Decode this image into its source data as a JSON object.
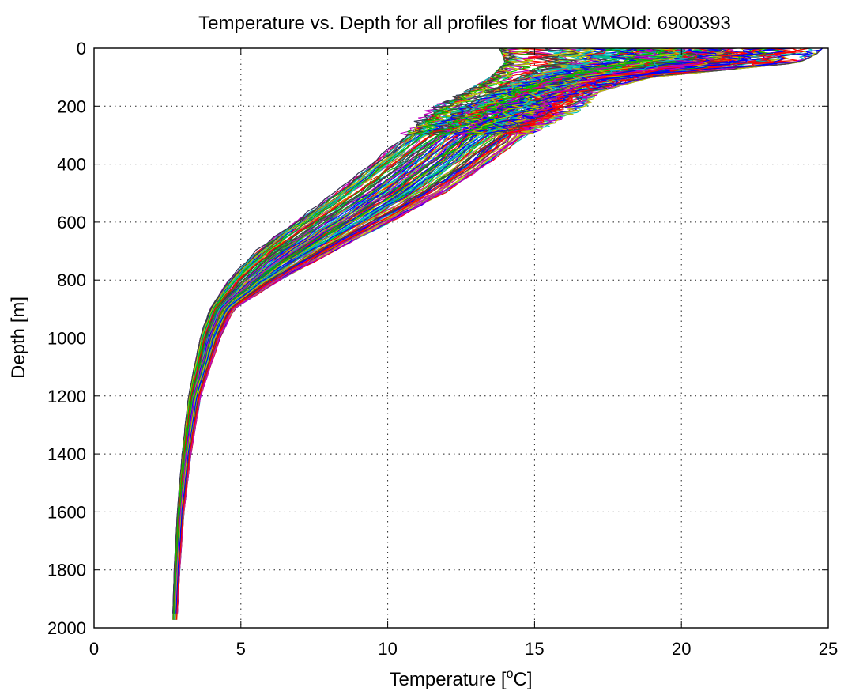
{
  "chart_data": {
    "type": "line",
    "title": "Temperature vs. Depth for all profiles for float WMOId: 6900393",
    "xlabel": "Temperature [",
    "xlabel_sup": "o",
    "xlabel_suffix": "C]",
    "ylabel": "Depth [m]",
    "xlim": [
      0,
      25
    ],
    "ylim": [
      0,
      2000
    ],
    "y_reversed": true,
    "grid": true,
    "x_ticks": [
      0,
      5,
      10,
      15,
      20,
      25
    ],
    "y_ticks": [
      0,
      200,
      400,
      600,
      800,
      1000,
      1200,
      1400,
      1600,
      1800,
      2000
    ],
    "profile_count": 150,
    "palette": [
      "#ff0000",
      "#00bf00",
      "#0000ff",
      "#00bfbf",
      "#bf00bf",
      "#bfbf00",
      "#404040"
    ],
    "representative_profile": {
      "depth": [
        0,
        20,
        50,
        80,
        100,
        150,
        200,
        300,
        400,
        500,
        600,
        700,
        750,
        800,
        900,
        1000,
        1100,
        1200,
        1400,
        1600,
        1800,
        1975
      ],
      "temperature": [
        21.0,
        20.0,
        18.5,
        16.8,
        15.8,
        14.6,
        13.9,
        12.6,
        11.1,
        9.3,
        7.4,
        5.8,
        5.2,
        4.8,
        4.3,
        3.9,
        3.6,
        3.4,
        3.15,
        3.0,
        2.85,
        2.75
      ]
    },
    "envelope": {
      "depth": [
        0,
        20,
        50,
        100,
        150,
        200,
        300,
        400,
        500,
        600,
        700,
        800,
        900,
        1000,
        1200,
        1400,
        1600,
        1800,
        1975
      ],
      "temperature_min": [
        13.8,
        13.9,
        14.0,
        13.5,
        12.6,
        11.5,
        10.0,
        8.8,
        7.6,
        6.3,
        5.1,
        4.3,
        3.8,
        3.5,
        3.15,
        2.95,
        2.8,
        2.7,
        2.65
      ],
      "temperature_max": [
        24.8,
        24.6,
        24.0,
        19.0,
        17.2,
        16.8,
        15.3,
        14.0,
        12.5,
        10.6,
        8.6,
        6.6,
        4.9,
        4.4,
        3.7,
        3.35,
        3.1,
        2.95,
        2.85
      ]
    }
  }
}
